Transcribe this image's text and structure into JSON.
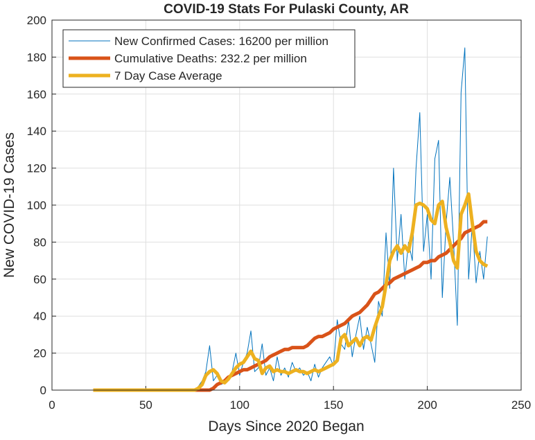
{
  "chart_data": {
    "type": "line",
    "title": "COVID-19 Stats For Pulaski County, AR",
    "xlabel": "Days Since 2020 Began",
    "ylabel": "New COVID-19 Cases",
    "xlim": [
      0,
      250
    ],
    "xticks": [
      0,
      50,
      100,
      150,
      200,
      250
    ],
    "ylim": [
      0,
      200
    ],
    "yticks": [
      0,
      20,
      40,
      60,
      80,
      100,
      120,
      140,
      160,
      180,
      200
    ],
    "grid": true,
    "legend": "upper left",
    "x": [
      22,
      24,
      26,
      28,
      30,
      32,
      34,
      36,
      38,
      40,
      42,
      44,
      46,
      48,
      50,
      52,
      54,
      56,
      58,
      60,
      62,
      64,
      66,
      68,
      70,
      72,
      74,
      76,
      78,
      80,
      82,
      84,
      86,
      88,
      90,
      92,
      94,
      96,
      98,
      100,
      102,
      104,
      106,
      108,
      110,
      112,
      114,
      116,
      118,
      120,
      122,
      124,
      126,
      128,
      130,
      132,
      134,
      136,
      138,
      140,
      142,
      144,
      146,
      148,
      150,
      152,
      154,
      156,
      158,
      160,
      162,
      164,
      166,
      168,
      170,
      172,
      174,
      176,
      178,
      180,
      182,
      184,
      186,
      188,
      190,
      192,
      194,
      196,
      198,
      200,
      202,
      204,
      206,
      208,
      210,
      212,
      214,
      216,
      218,
      220,
      222,
      224,
      226,
      228,
      230,
      232
    ],
    "series": [
      {
        "name": "New Confirmed Cases: 16200 per million",
        "color": "#0072BD",
        "width": 1,
        "values": [
          0,
          0,
          0,
          0,
          0,
          0,
          0,
          0,
          0,
          0,
          0,
          0,
          0,
          0,
          0,
          0,
          0,
          0,
          0,
          0,
          0,
          0,
          0,
          0,
          0,
          0,
          0,
          0,
          2,
          5,
          10,
          24,
          5,
          8,
          3,
          4,
          6,
          10,
          20,
          8,
          15,
          20,
          32,
          10,
          12,
          25,
          8,
          12,
          5,
          18,
          8,
          12,
          7,
          15,
          10,
          12,
          8,
          10,
          5,
          14,
          7,
          12,
          15,
          18,
          13,
          38,
          25,
          22,
          38,
          18,
          30,
          40,
          22,
          34,
          25,
          15,
          48,
          40,
          85,
          55,
          120,
          70,
          95,
          60,
          80,
          70,
          120,
          150,
          75,
          95,
          60,
          125,
          135,
          50,
          90,
          115,
          80,
          35,
          161,
          185,
          60,
          90,
          58,
          75,
          60,
          83
        ]
      },
      {
        "name": "Cumulative Deaths: 232.2 per million",
        "color": "#D95319",
        "width": 5,
        "values": [
          0,
          0,
          0,
          0,
          0,
          0,
          0,
          0,
          0,
          0,
          0,
          0,
          0,
          0,
          0,
          0,
          0,
          0,
          0,
          0,
          0,
          0,
          0,
          0,
          0,
          0,
          0,
          0,
          0,
          0,
          0,
          0,
          1,
          3,
          4,
          5,
          7,
          8,
          9,
          10,
          11,
          11,
          12,
          13,
          14,
          15,
          16,
          18,
          19,
          20,
          21,
          22,
          22,
          23,
          23,
          23,
          23,
          24,
          26,
          28,
          29,
          29,
          30,
          31,
          33,
          34,
          35,
          36,
          38,
          40,
          41,
          42,
          44,
          46,
          49,
          52,
          53,
          55,
          57,
          58,
          60,
          61,
          62,
          63,
          64,
          65,
          66,
          67,
          69,
          69,
          70,
          70,
          72,
          73,
          74,
          76,
          78,
          80,
          82,
          85,
          86,
          87,
          88,
          89,
          91,
          91
        ]
      },
      {
        "name": "7 Day Case Average",
        "color": "#EDB120",
        "width": 5,
        "values": [
          0,
          0,
          0,
          0,
          0,
          0,
          0,
          0,
          0,
          0,
          0,
          0,
          0,
          0,
          0,
          0,
          0,
          0,
          0,
          0,
          0,
          0,
          0,
          0,
          0,
          0,
          0,
          0,
          1,
          3,
          8,
          10,
          11,
          9,
          5,
          4,
          6,
          9,
          12,
          14,
          15,
          18,
          21,
          17,
          16,
          9,
          12,
          13,
          10,
          11,
          10,
          10,
          9,
          10,
          11,
          10,
          10,
          9,
          10,
          11,
          10,
          11,
          12,
          13,
          14,
          16,
          28,
          30,
          24,
          26,
          28,
          24,
          28,
          29,
          27,
          34,
          40,
          45,
          57,
          70,
          75,
          78,
          74,
          78,
          75,
          85,
          100,
          101,
          100,
          98,
          92,
          90,
          100,
          102,
          88,
          80,
          70,
          66,
          95,
          100,
          106,
          90,
          75,
          70,
          68,
          67
        ]
      }
    ]
  }
}
